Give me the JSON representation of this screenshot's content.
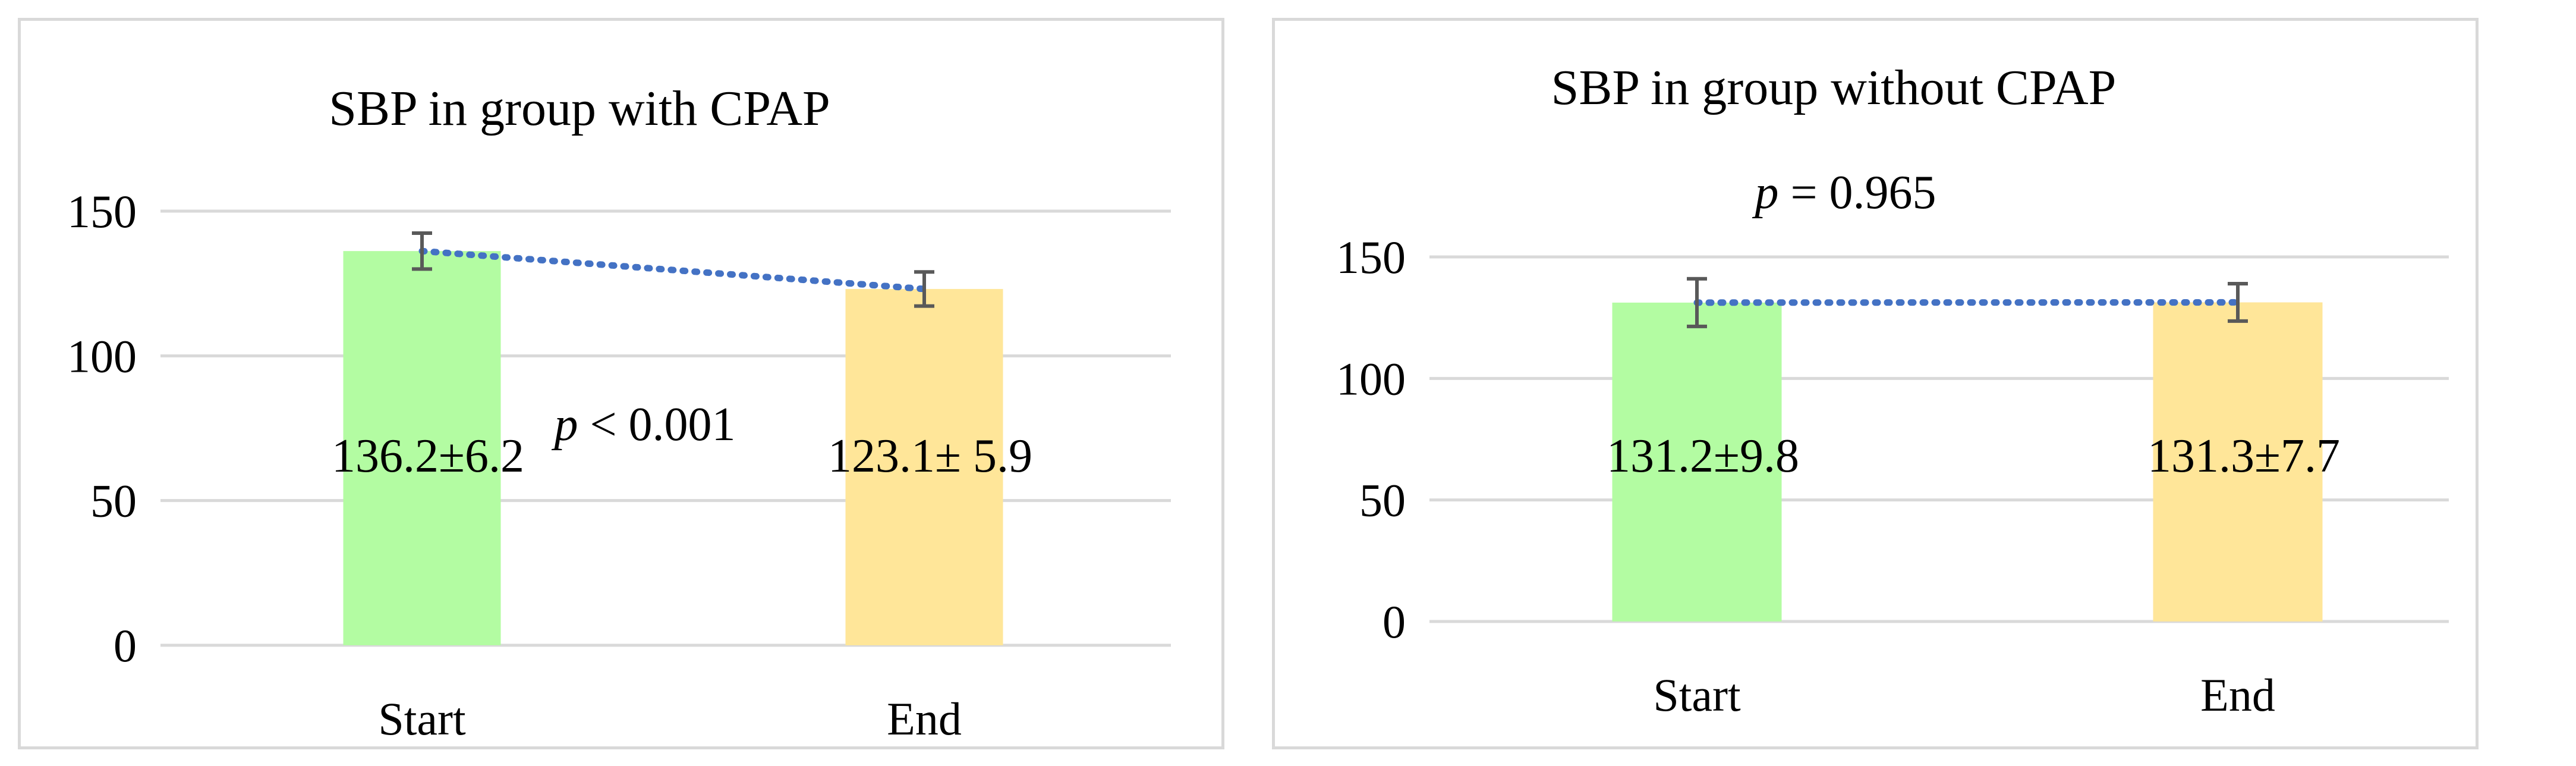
{
  "chart_data": [
    {
      "type": "bar",
      "title": "SBP in group with CPAP",
      "categories": [
        "Start",
        "End"
      ],
      "values": [
        136.2,
        123.1
      ],
      "errors": [
        6.2,
        5.9
      ],
      "data_labels": [
        "136.2±6.2",
        "123.1± 5.9"
      ],
      "bar_colors": [
        "#b3fca2",
        "#ffe699"
      ],
      "trend_line": {
        "style": "dotted",
        "color": "#4472c4"
      },
      "annotation": {
        "italic": "p",
        "text": " < 0.001"
      },
      "yticks": [
        0,
        50,
        100,
        150
      ],
      "ylim": [
        0,
        150
      ],
      "grid": true,
      "xlabel": "",
      "ylabel": ""
    },
    {
      "type": "bar",
      "title": "SBP in group without CPAP",
      "categories": [
        "Start",
        "End"
      ],
      "values": [
        131.2,
        131.3
      ],
      "errors": [
        9.8,
        7.7
      ],
      "data_labels": [
        "131.2±9.8",
        "131.3±7.7"
      ],
      "bar_colors": [
        "#b3fca2",
        "#ffe699"
      ],
      "trend_line": {
        "style": "dotted",
        "color": "#4472c4"
      },
      "annotation": {
        "italic": "p",
        "text": " = 0.965"
      },
      "yticks": [
        0,
        50,
        100,
        150
      ],
      "ylim": [
        0,
        150
      ],
      "grid": true,
      "xlabel": "",
      "ylabel": ""
    }
  ]
}
